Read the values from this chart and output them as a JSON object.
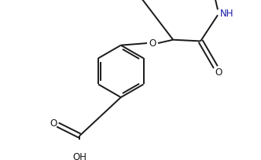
{
  "bg_color": "#ffffff",
  "line_color": "#1a1a1a",
  "text_color": "#1a1a1a",
  "nh_color": "#1a1aaa",
  "bond_lw": 1.4,
  "figsize": [
    3.32,
    2.04
  ],
  "dpi": 100,
  "xlim": [
    0,
    332
  ],
  "ylim": [
    0,
    204
  ]
}
